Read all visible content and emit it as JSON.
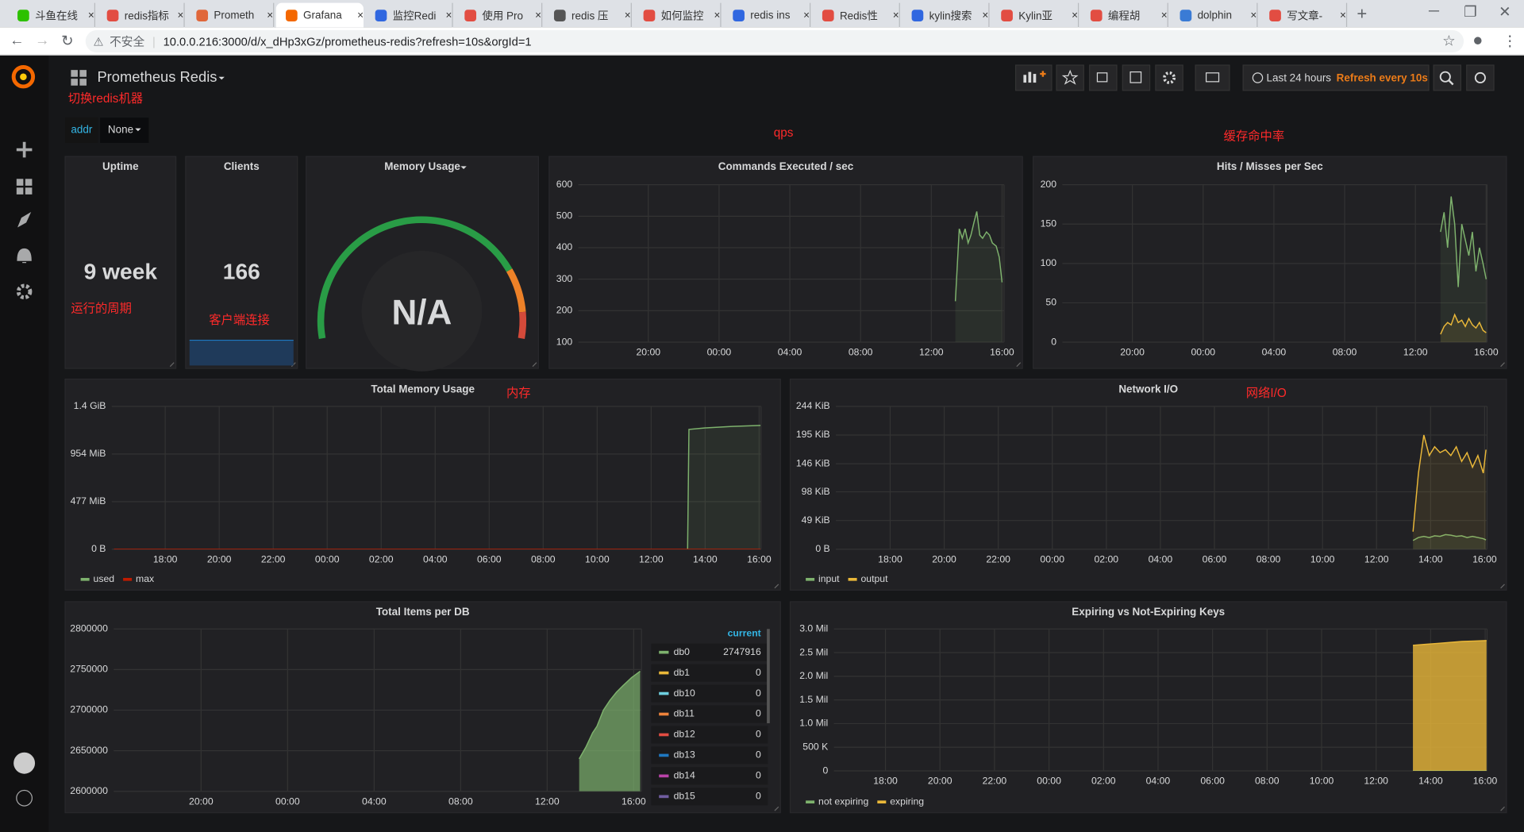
{
  "browser": {
    "tabs": [
      "斗鱼在线",
      "redis指标",
      "Prometh",
      "Grafana",
      "监控Redi",
      "使用 Pro",
      "redis 压",
      "如何监控",
      "redis ins",
      "Redis性",
      "kylin搜索",
      "Kylin亚",
      "编程胡",
      "dolphin",
      "写文章-"
    ],
    "active_tab": 3,
    "security": "不安全",
    "url": "10.0.0.216:3000/d/x_dHp3xGz/prometheus-redis?refresh=10s&orgId=1"
  },
  "dashboard": {
    "title": "Prometheus Redis",
    "time_range": "Last 24 hours",
    "refresh": "Refresh every 10s",
    "variable": {
      "label": "addr",
      "value": "None"
    }
  },
  "annotations": [
    "切换redis机器",
    "qps",
    "缓存命中率",
    "运行的周期",
    "客户端连接",
    "内存",
    "网络I/O"
  ],
  "panels": [
    {
      "type": "stat",
      "title": "Uptime",
      "value": "9 week"
    },
    {
      "type": "stat",
      "title": "Clients",
      "value": 166
    },
    {
      "type": "gauge",
      "title": "Memory Usage",
      "value": "N/A"
    },
    {
      "type": "line",
      "title": "Commands Executed / sec",
      "ylim": [
        100,
        600
      ],
      "yticks": [
        100,
        200,
        300,
        400,
        500,
        600
      ],
      "xlim": [
        16.04,
        40.11
      ],
      "xticks": [
        {
          "value": 20,
          "label": "20:00"
        },
        {
          "value": 24,
          "label": "00:00"
        },
        {
          "value": 28,
          "label": "04:00"
        },
        {
          "value": 32,
          "label": "08:00"
        },
        {
          "value": 36,
          "label": "12:00"
        },
        {
          "value": 40,
          "label": "16:00"
        }
      ],
      "fill": 0.1,
      "series": [
        {
          "color": "#7eb26d",
          "x": [
            37.36,
            37.58,
            37.75,
            37.91,
            38.08,
            38.24,
            38.41,
            38.57,
            38.74,
            38.9,
            39.12,
            39.29,
            39.45,
            39.67,
            39.84,
            40.0
          ],
          "values": [
            230,
            460,
            430,
            460,
            415,
            440,
            480,
            515,
            440,
            430,
            450,
            440,
            415,
            405,
            370,
            290
          ]
        }
      ]
    },
    {
      "type": "line",
      "title": "Hits / Misses per Sec",
      "ylim": [
        0,
        200
      ],
      "yticks": [
        0,
        50,
        100,
        150,
        200
      ],
      "xlim": [
        16.04,
        40.05
      ],
      "xticks": [
        {
          "value": 20,
          "label": "20:00"
        },
        {
          "value": 24,
          "label": "00:00"
        },
        {
          "value": 28,
          "label": "04:00"
        },
        {
          "value": 32,
          "label": "08:00"
        },
        {
          "value": 36,
          "label": "12:00"
        },
        {
          "value": 40,
          "label": "16:00"
        }
      ],
      "fill": 0.1,
      "series": [
        {
          "color": "#7eb26d",
          "x": [
            37.42,
            37.62,
            37.82,
            38.02,
            38.22,
            38.42,
            38.62,
            38.82,
            39.02,
            39.22,
            39.42,
            39.62,
            39.82,
            40.0
          ],
          "values": [
            140,
            165,
            120,
            185,
            150,
            70,
            150,
            130,
            110,
            140,
            90,
            120,
            100,
            80
          ]
        },
        {
          "color": "#eab839",
          "x": [
            37.42,
            37.62,
            37.82,
            38.02,
            38.22,
            38.42,
            38.62,
            38.82,
            39.02,
            39.22,
            39.42,
            39.62,
            39.82,
            40.0
          ],
          "values": [
            10,
            20,
            25,
            22,
            35,
            25,
            28,
            20,
            30,
            22,
            18,
            25,
            15,
            12
          ]
        }
      ]
    },
    {
      "type": "line",
      "title": "Total Memory Usage",
      "ylim": [
        0,
        1431
      ],
      "yticks": [
        {
          "value": 0,
          "label": "0 B"
        },
        {
          "value": 477,
          "label": "477 MiB"
        },
        {
          "value": 954,
          "label": "954 MiB"
        },
        {
          "value": 1431,
          "label": "1.4 GiB"
        }
      ],
      "xlim": [
        16.02,
        40.07
      ],
      "xticks": [
        {
          "value": 18,
          "label": "18:00"
        },
        {
          "value": 20,
          "label": "20:00"
        },
        {
          "value": 22,
          "label": "22:00"
        },
        {
          "value": 24,
          "label": "00:00"
        },
        {
          "value": 26,
          "label": "02:00"
        },
        {
          "value": 28,
          "label": "04:00"
        },
        {
          "value": 30,
          "label": "06:00"
        },
        {
          "value": 32,
          "label": "08:00"
        },
        {
          "value": 34,
          "label": "10:00"
        },
        {
          "value": 36,
          "label": "12:00"
        },
        {
          "value": 38,
          "label": "14:00"
        },
        {
          "value": 40,
          "label": "16:00"
        }
      ],
      "fill": 0.1,
      "legend": "bottom",
      "series": [
        {
          "name": "used",
          "color": "#7eb26d",
          "x": [
            37.35,
            37.4,
            38,
            39,
            40.05
          ],
          "values": [
            0,
            1200,
            1215,
            1230,
            1240
          ]
        },
        {
          "name": "max",
          "color": "#bf1b00",
          "x": [
            16.1,
            40.05
          ],
          "values": [
            0,
            0
          ]
        }
      ]
    },
    {
      "type": "line",
      "title": "Network I/O",
      "ylim": [
        0,
        244
      ],
      "yticks": [
        {
          "value": 0,
          "label": "0 B"
        },
        {
          "value": 49,
          "label": "49 KiB"
        },
        {
          "value": 98,
          "label": "98 KiB"
        },
        {
          "value": 146,
          "label": "146 KiB"
        },
        {
          "value": 195,
          "label": "195 KiB"
        },
        {
          "value": 244,
          "label": "244 KiB"
        }
      ],
      "xlim": [
        15.99,
        40.09
      ],
      "xticks": [
        {
          "value": 18,
          "label": "18:00"
        },
        {
          "value": 20,
          "label": "20:00"
        },
        {
          "value": 22,
          "label": "22:00"
        },
        {
          "value": 24,
          "label": "00:00"
        },
        {
          "value": 26,
          "label": "02:00"
        },
        {
          "value": 28,
          "label": "04:00"
        },
        {
          "value": 30,
          "label": "06:00"
        },
        {
          "value": 32,
          "label": "08:00"
        },
        {
          "value": 34,
          "label": "10:00"
        },
        {
          "value": 36,
          "label": "12:00"
        },
        {
          "value": 38,
          "label": "14:00"
        },
        {
          "value": 40,
          "label": "16:00"
        }
      ],
      "fill": 0.1,
      "legend": "bottom",
      "series": [
        {
          "name": "input",
          "color": "#7eb26d",
          "x": [
            37.35,
            37.55,
            37.75,
            37.95,
            38.15,
            38.35,
            38.55,
            38.75,
            38.95,
            39.15,
            39.35,
            39.55,
            39.75,
            39.95,
            40.05
          ],
          "values": [
            15,
            20,
            22,
            20,
            23,
            22,
            25,
            24,
            22,
            23,
            20,
            22,
            20,
            18,
            16
          ]
        },
        {
          "name": "output",
          "color": "#eab839",
          "x": [
            37.35,
            37.55,
            37.75,
            37.95,
            38.15,
            38.35,
            38.55,
            38.75,
            38.95,
            39.15,
            39.35,
            39.55,
            39.75,
            39.95,
            40.05
          ],
          "values": [
            30,
            130,
            195,
            160,
            175,
            165,
            170,
            160,
            175,
            150,
            165,
            140,
            160,
            130,
            170
          ]
        }
      ]
    },
    {
      "type": "line",
      "title": "Total Items per DB",
      "ylim": [
        2600000,
        2800000
      ],
      "yticks": [
        2600000,
        2650000,
        2700000,
        2750000,
        2800000
      ],
      "xlim": [
        15.96,
        40.36
      ],
      "xticks": [
        {
          "value": 20,
          "label": "20:00"
        },
        {
          "value": 24,
          "label": "00:00"
        },
        {
          "value": 28,
          "label": "04:00"
        },
        {
          "value": 32,
          "label": "08:00"
        },
        {
          "value": 36,
          "label": "12:00"
        },
        {
          "value": 40,
          "label": "16:00"
        }
      ],
      "fill": 0.7,
      "legend": "table",
      "legend_header": "current",
      "series": [
        {
          "name": "db0",
          "color": "#7eb26d",
          "current": 2747916,
          "x": [
            37.48,
            37.8,
            38.1,
            38.3,
            38.6,
            38.9,
            39.2,
            39.5,
            39.9,
            40.3
          ],
          "values": [
            2640000,
            2655000,
            2672000,
            2680000,
            2700000,
            2712000,
            2722000,
            2730000,
            2740000,
            2747916
          ]
        },
        {
          "name": "db1",
          "color": "#eab839",
          "current": 0
        },
        {
          "name": "db10",
          "color": "#6ed0e0",
          "current": 0
        },
        {
          "name": "db11",
          "color": "#ef843c",
          "current": 0
        },
        {
          "name": "db12",
          "color": "#e24d42",
          "current": 0
        },
        {
          "name": "db13",
          "color": "#1f78c1",
          "current": 0
        },
        {
          "name": "db14",
          "color": "#ba43a9",
          "current": 0
        },
        {
          "name": "db15",
          "color": "#705da0",
          "current": 0
        }
      ]
    },
    {
      "type": "line",
      "title": "Expiring vs Not-Expiring Keys",
      "ylim": [
        0,
        3000000
      ],
      "yticks": [
        0,
        {
          "value": 500000,
          "label": "500 K"
        },
        {
          "value": 1000000,
          "label": "1.0 Mil"
        },
        {
          "value": 1500000,
          "label": "1.5 Mil"
        },
        {
          "value": 2000000,
          "label": "2.0 Mil"
        },
        {
          "value": 2500000,
          "label": "2.5 Mil"
        },
        {
          "value": 3000000,
          "label": "3.0 Mil"
        }
      ],
      "xlim": [
        16.11,
        40.07
      ],
      "xticks": [
        {
          "value": 18,
          "label": "18:00"
        },
        {
          "value": 20,
          "label": "20:00"
        },
        {
          "value": 22,
          "label": "22:00"
        },
        {
          "value": 24,
          "label": "00:00"
        },
        {
          "value": 26,
          "label": "02:00"
        },
        {
          "value": 28,
          "label": "04:00"
        },
        {
          "value": 30,
          "label": "06:00"
        },
        {
          "value": 32,
          "label": "08:00"
        },
        {
          "value": 34,
          "label": "10:00"
        },
        {
          "value": 36,
          "label": "12:00"
        },
        {
          "value": 38,
          "label": "14:00"
        },
        {
          "value": 40,
          "label": "16:00"
        }
      ],
      "fill": 0.8,
      "stacked": true,
      "legend": "bottom",
      "series": [
        {
          "name": "not expiring",
          "color": "#7eb26d",
          "x": [
            37.35,
            37.8,
            38.25,
            38.7,
            39.15,
            39.6,
            40.05
          ],
          "values": [
            5000,
            5000,
            5000,
            5000,
            5000,
            5000,
            5000
          ]
        },
        {
          "name": "expiring",
          "color": "#eab839",
          "x": [
            37.35,
            37.8,
            38.25,
            38.7,
            39.15,
            39.6,
            40.05
          ],
          "values": [
            2650000,
            2670000,
            2690000,
            2710000,
            2730000,
            2740000,
            2750000
          ]
        }
      ]
    }
  ]
}
